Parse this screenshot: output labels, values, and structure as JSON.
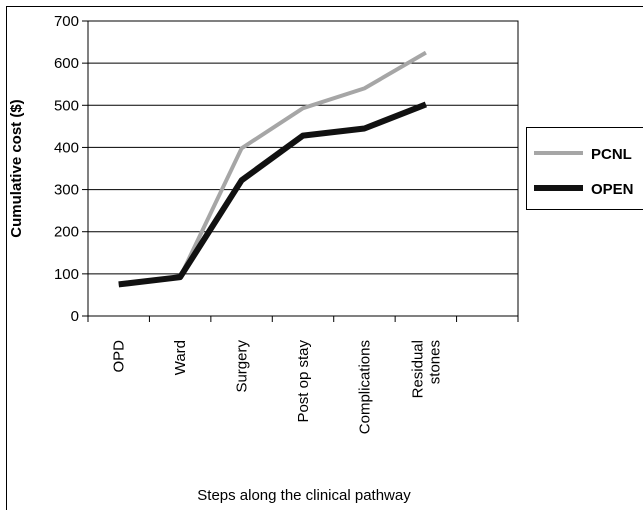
{
  "chart_data": {
    "type": "line",
    "title": "",
    "xlabel": "Steps along the clinical pathway",
    "ylabel": "Cumulative cost ($)",
    "categories": [
      "OPD",
      "Ward",
      "Surgery",
      "Post op stay",
      "Complications",
      "Residual stones"
    ],
    "category_lines": [
      [
        "OPD"
      ],
      [
        "Ward"
      ],
      [
        "Surgery"
      ],
      [
        "Post op stay"
      ],
      [
        "Complications"
      ],
      [
        "Residual",
        "stones"
      ]
    ],
    "category_slots": 7,
    "ylim": [
      0,
      700
    ],
    "yticks": [
      0,
      100,
      200,
      300,
      400,
      500,
      600,
      700
    ],
    "grid": true,
    "legend_position": "right",
    "series": [
      {
        "name": "PCNL",
        "color": "#a6a6a6",
        "values": [
          75,
          92,
          398,
          493,
          540,
          625
        ]
      },
      {
        "name": "OPEN",
        "color": "#111111",
        "values": [
          75,
          92,
          322,
          428,
          445,
          502
        ]
      }
    ]
  }
}
